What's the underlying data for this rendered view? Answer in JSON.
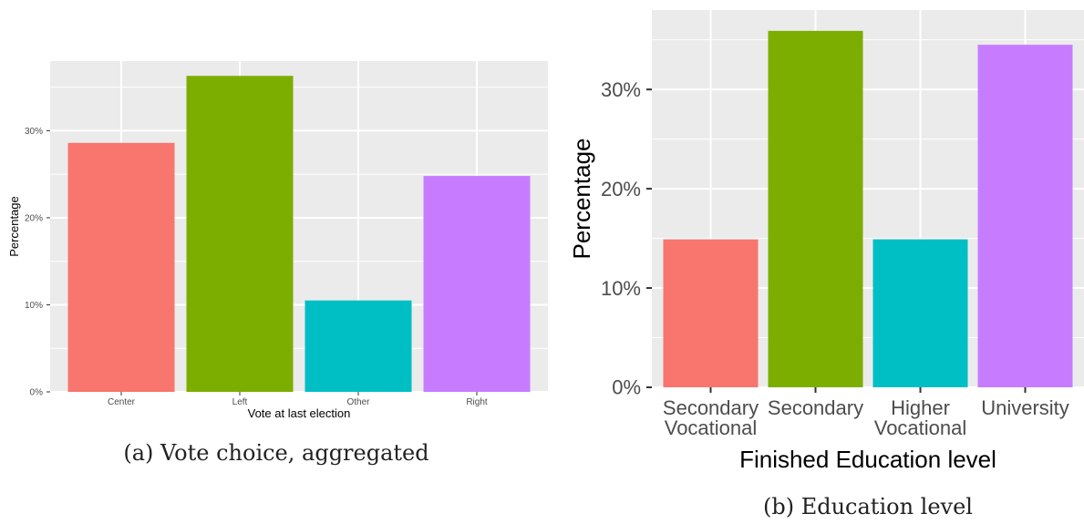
{
  "colors": {
    "panel": "#ebebeb",
    "grid": "#ffffff",
    "tick": "#333333",
    "series": [
      "#F8766D",
      "#7CAE00",
      "#00BFC4",
      "#C77CFF"
    ]
  },
  "chart_data": [
    {
      "type": "bar",
      "caption": "(a) Vote choice, aggregated",
      "xlabel": "Vote at last election",
      "ylabel": "Percentage",
      "categories": [
        "Center",
        "Left",
        "Other",
        "Right"
      ],
      "values": [
        28.6,
        36.3,
        10.5,
        24.8
      ],
      "yticks": [
        "0%",
        "10%",
        "20%",
        "30%"
      ],
      "ylim": [
        0,
        38
      ],
      "grid": true,
      "legend": "none"
    },
    {
      "type": "bar",
      "caption": "(b) Education level",
      "xlabel": "Finished Education level",
      "ylabel": "Percentage",
      "categories": [
        [
          "Secondary",
          "Vocational"
        ],
        [
          "Secondary"
        ],
        [
          "Higher",
          "Vocational"
        ],
        [
          "University"
        ]
      ],
      "values": [
        14.9,
        35.9,
        14.9,
        34.5
      ],
      "yticks": [
        "0%",
        "10%",
        "20%",
        "30%"
      ],
      "ylim": [
        0,
        38
      ],
      "grid": true,
      "legend": "none"
    }
  ]
}
